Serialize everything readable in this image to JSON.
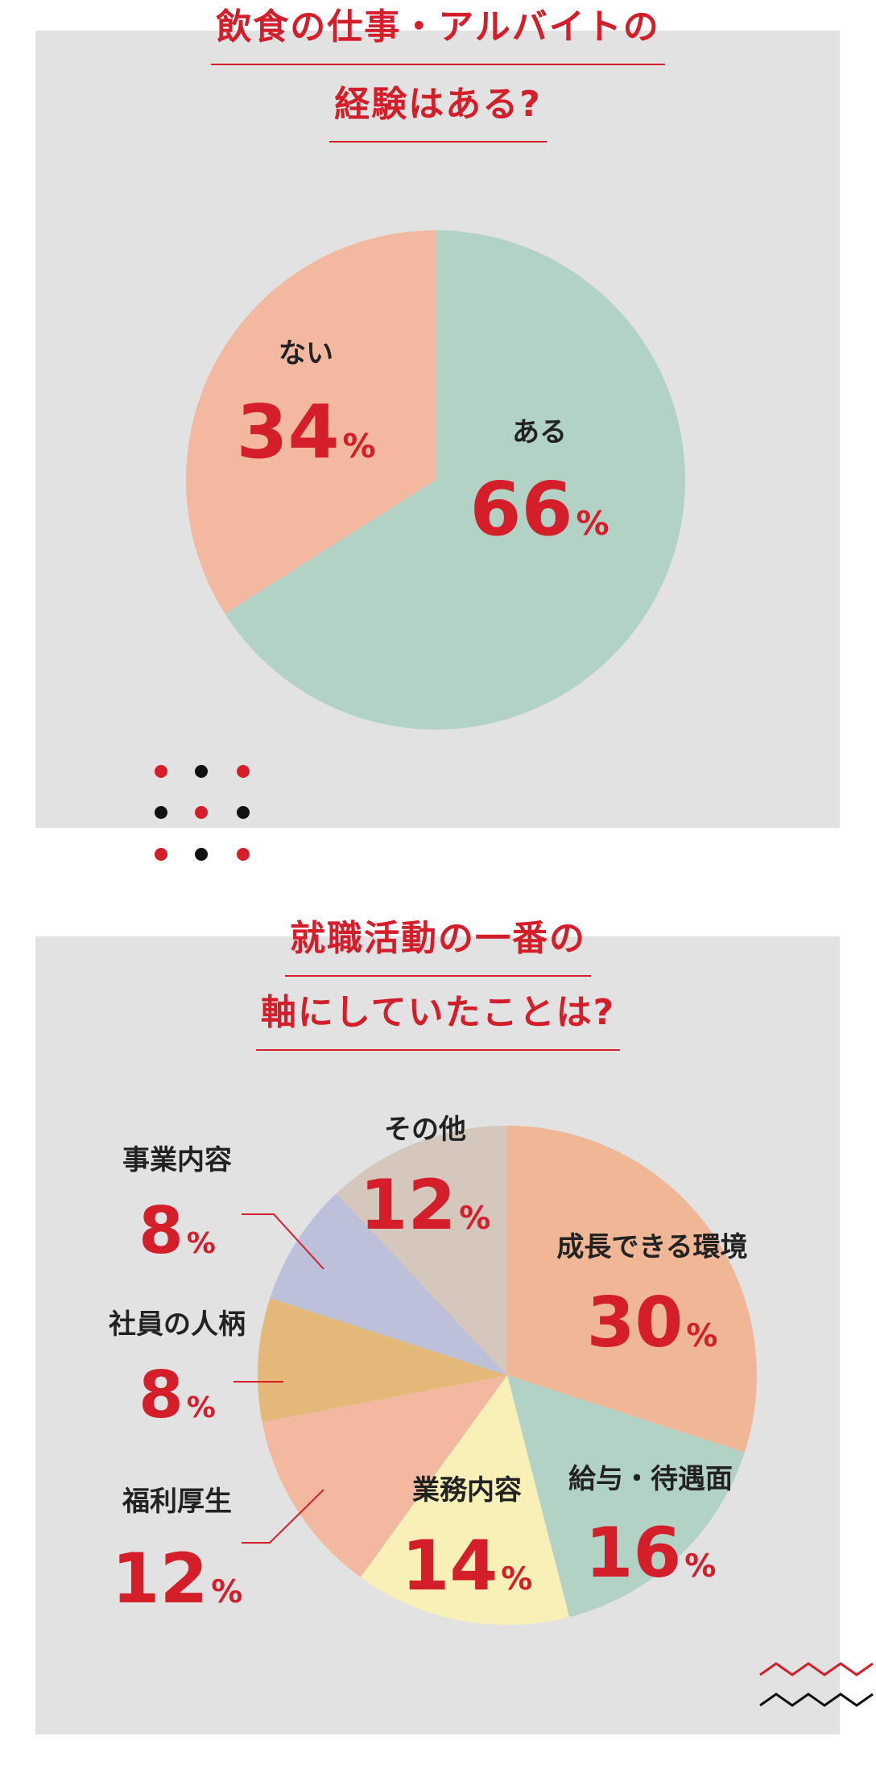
{
  "chart1": {
    "title_lines": [
      "飲食の仕事・アルバイトの",
      "経験はある?"
    ]
  },
  "chart2": {
    "title_lines": [
      "就職活動の一番の",
      "軸にしていたことは?"
    ]
  },
  "chart_data": [
    {
      "type": "pie",
      "title": "飲食の仕事・アルバイトの経験はある?",
      "categories": [
        "ある",
        "ない"
      ],
      "values": [
        66,
        34
      ],
      "unit": "%",
      "colors": [
        "#b2d2c5",
        "#f3b9a0"
      ]
    },
    {
      "type": "pie",
      "title": "就職活動の一番の軸にしていたことは?",
      "categories": [
        "成長できる環境",
        "給与・待遇面",
        "業務内容",
        "福利厚生",
        "社員の人柄",
        "事業内容",
        "その他"
      ],
      "values": [
        30,
        16,
        14,
        12,
        8,
        8,
        12
      ],
      "unit": "%",
      "colors": [
        "#f0b797",
        "#b2d2c5",
        "#f8f0b7",
        "#f3b9a0",
        "#e3b878",
        "#bcc0d8",
        "#d5c7bc"
      ]
    }
  ]
}
